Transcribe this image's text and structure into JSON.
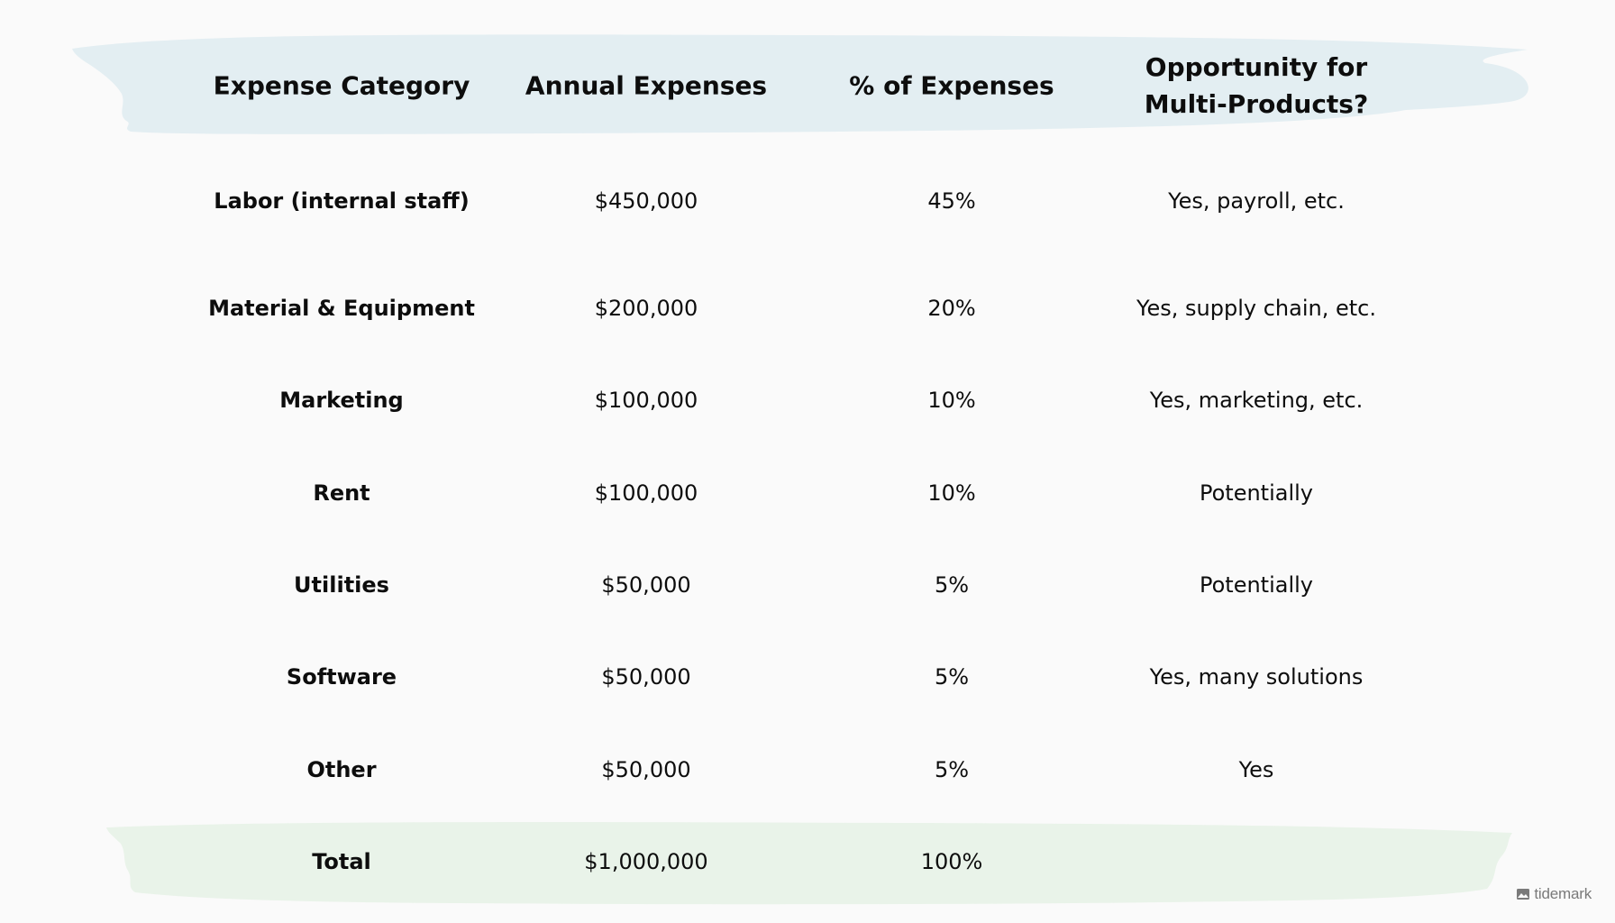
{
  "colors": {
    "header_band": "#e3eef2",
    "total_band": "#e9f3e9",
    "text": "#0d0d0d",
    "brand": "#7a7a7a"
  },
  "table": {
    "headers": {
      "category": "Expense Category",
      "annual": "Annual Expenses",
      "percent": "% of Expenses",
      "opportunity_line1": "Opportunity for",
      "opportunity_line2": "Multi-Products?"
    },
    "rows": [
      {
        "category": "Labor (internal staff)",
        "annual": "$450,000",
        "percent": "45%",
        "opportunity": "Yes, payroll, etc."
      },
      {
        "category": "Material & Equipment",
        "annual": "$200,000",
        "percent": "20%",
        "opportunity": "Yes, supply chain, etc."
      },
      {
        "category": "Marketing",
        "annual": "$100,000",
        "percent": "10%",
        "opportunity": "Yes, marketing, etc."
      },
      {
        "category": "Rent",
        "annual": "$100,000",
        "percent": "10%",
        "opportunity": "Potentially"
      },
      {
        "category": "Utilities",
        "annual": "$50,000",
        "percent": "5%",
        "opportunity": "Potentially"
      },
      {
        "category": "Software",
        "annual": "$50,000",
        "percent": "5%",
        "opportunity": "Yes, many solutions"
      },
      {
        "category": "Other",
        "annual": "$50,000",
        "percent": "5%",
        "opportunity": "Yes"
      }
    ],
    "total": {
      "category": "Total",
      "annual": "$1,000,000",
      "percent": "100%",
      "opportunity": ""
    }
  },
  "brand": {
    "name": "tidemark",
    "icon": "tidemark-logo-icon"
  }
}
